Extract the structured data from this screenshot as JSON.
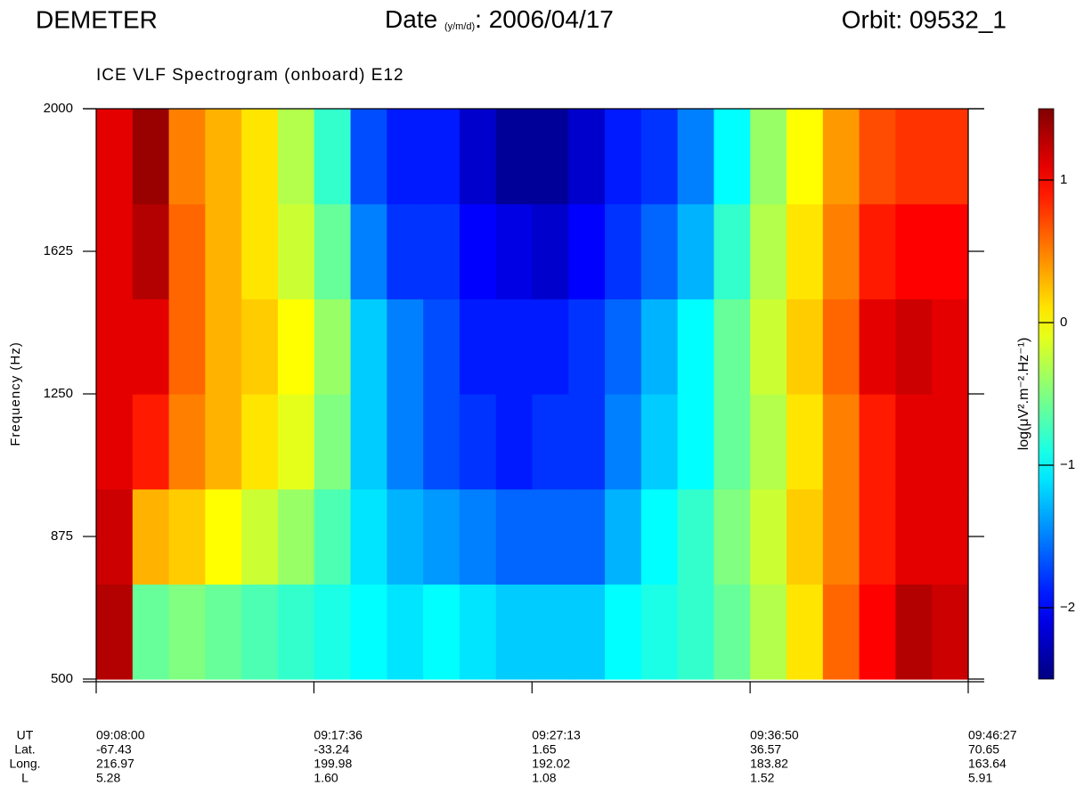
{
  "header": {
    "mission": "DEMETER",
    "date_label": "Date",
    "date_format": "(y/m/d)",
    "date_value": ": 2006/04/17",
    "orbit": "Orbit: 09532_1"
  },
  "chart_data": {
    "type": "heatmap",
    "title": "ICE VLF Spectrogram (onboard) E12",
    "y_label": "Frequency (Hz)",
    "ylim": [
      500,
      2000
    ],
    "yticks": [
      500,
      875,
      1250,
      1625,
      2000
    ],
    "y_bins": [
      500,
      750,
      1000,
      1250,
      1500,
      1750,
      2000
    ],
    "colormap": "jet",
    "colorbar_label": "log(μV².m⁻².Hz⁻¹)",
    "zlim": [
      -2.5,
      1.5
    ],
    "zticks": [
      {
        "value": -2,
        "label": "−2"
      },
      {
        "value": -1,
        "label": "−1"
      },
      0,
      1
    ],
    "values": [
      [
        1.3,
        -0.6,
        -0.5,
        -0.6,
        -0.7,
        -0.8,
        -0.9,
        -1.0,
        -1.1,
        -1.0,
        -1.1,
        -1.2,
        -1.2,
        -1.2,
        -1.0,
        -0.9,
        -0.8,
        -0.6,
        -0.3,
        0.1,
        0.6,
        1.0,
        1.3,
        1.2
      ],
      [
        1.2,
        0.3,
        0.2,
        0.0,
        -0.2,
        -0.4,
        -0.7,
        -1.1,
        -1.3,
        -1.4,
        -1.5,
        -1.6,
        -1.6,
        -1.6,
        -1.3,
        -1.0,
        -0.8,
        -0.5,
        -0.2,
        0.2,
        0.5,
        0.9,
        1.1,
        1.1
      ],
      [
        1.1,
        0.9,
        0.5,
        0.3,
        0.1,
        -0.1,
        -0.5,
        -1.2,
        -1.5,
        -1.7,
        -1.8,
        -1.9,
        -1.8,
        -1.8,
        -1.5,
        -1.2,
        -1.0,
        -0.6,
        -0.3,
        0.1,
        0.5,
        0.9,
        1.1,
        1.1
      ],
      [
        1.1,
        1.1,
        0.6,
        0.3,
        0.2,
        0.0,
        -0.4,
        -1.2,
        -1.5,
        -1.7,
        -1.9,
        -1.9,
        -1.9,
        -1.8,
        -1.6,
        -1.3,
        -1.0,
        -0.6,
        -0.2,
        0.2,
        0.6,
        1.1,
        1.2,
        1.1
      ],
      [
        1.1,
        1.3,
        0.6,
        0.3,
        0.1,
        -0.2,
        -0.6,
        -1.5,
        -1.8,
        -1.8,
        -2.0,
        -2.1,
        -2.2,
        -2.0,
        -1.8,
        -1.6,
        -1.3,
        -0.8,
        -0.3,
        0.1,
        0.5,
        0.9,
        1.0,
        1.0
      ],
      [
        1.1,
        1.4,
        0.5,
        0.3,
        0.1,
        -0.3,
        -0.8,
        -1.7,
        -1.9,
        -1.9,
        -2.2,
        -2.4,
        -2.4,
        -2.2,
        -1.9,
        -1.8,
        -1.5,
        -1.0,
        -0.4,
        0.0,
        0.4,
        0.7,
        0.8,
        0.8
      ]
    ],
    "ephemeris": [
      {
        "name": "UT",
        "values": [
          "09:08:00",
          "09:17:36",
          "09:27:13",
          "09:36:50",
          "09:46:27"
        ]
      },
      {
        "name": "Lat.",
        "values": [
          "-67.43",
          "-33.24",
          "1.65",
          "36.57",
          "70.65"
        ]
      },
      {
        "name": "Long.",
        "values": [
          "216.97",
          "199.98",
          "192.02",
          "183.82",
          "163.64"
        ]
      },
      {
        "name": "L",
        "values": [
          "5.28",
          "1.60",
          "1.08",
          "1.52",
          "5.91"
        ]
      }
    ]
  }
}
